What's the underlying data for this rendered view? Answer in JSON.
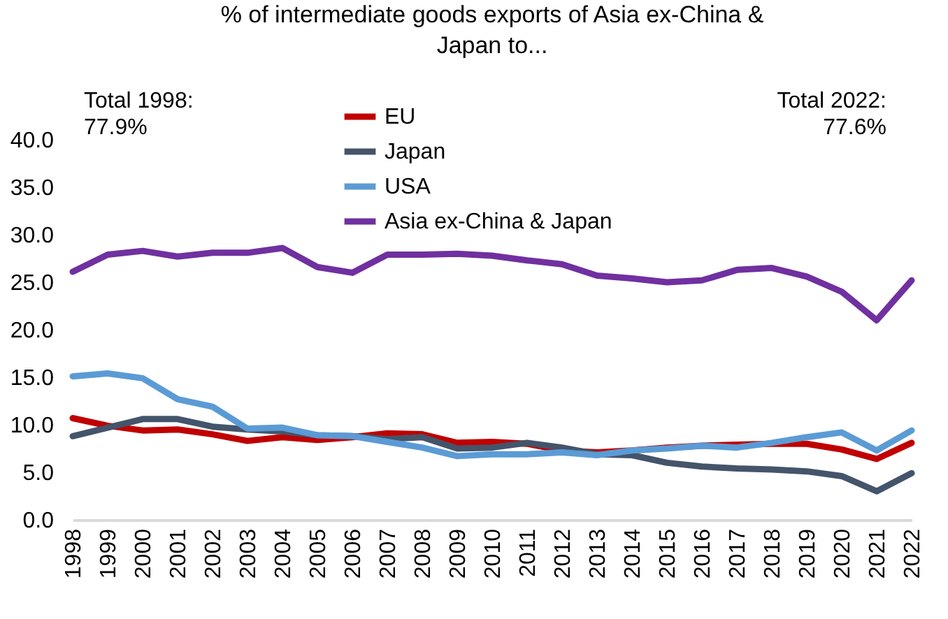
{
  "chart_data": {
    "type": "line",
    "title": [
      "% of intermediate goods exports of Asia ex-China &",
      "Japan to..."
    ],
    "categories": [
      "1998",
      "1999",
      "2000",
      "2001",
      "2002",
      "2003",
      "2004",
      "2005",
      "2006",
      "2007",
      "2008",
      "2009",
      "2010",
      "2011",
      "2012",
      "2013",
      "2014",
      "2015",
      "2016",
      "2017",
      "2018",
      "2019",
      "2020",
      "2021",
      "2022"
    ],
    "series": [
      {
        "name": "EU",
        "color": "#c00000",
        "values": [
          10.7,
          9.9,
          9.4,
          9.5,
          9.0,
          8.3,
          8.7,
          8.4,
          8.7,
          9.1,
          9.0,
          8.1,
          8.2,
          8.0,
          7.3,
          7.1,
          7.3,
          7.6,
          7.8,
          7.9,
          8.0,
          8.0,
          7.4,
          6.4,
          8.1
        ]
      },
      {
        "name": "Japan",
        "color": "#44546a",
        "values": [
          8.8,
          9.7,
          10.6,
          10.6,
          9.8,
          9.5,
          9.3,
          8.9,
          8.8,
          8.5,
          8.7,
          7.5,
          7.6,
          8.1,
          7.6,
          6.9,
          6.8,
          6.0,
          5.6,
          5.4,
          5.3,
          5.1,
          4.6,
          3.0,
          4.9
        ]
      },
      {
        "name": "USA",
        "color": "#5b9bd5",
        "values": [
          15.1,
          15.4,
          14.9,
          12.7,
          11.9,
          9.6,
          9.7,
          8.9,
          8.8,
          8.2,
          7.6,
          6.7,
          6.9,
          6.9,
          7.1,
          6.8,
          7.3,
          7.5,
          7.8,
          7.6,
          8.1,
          8.7,
          9.2,
          7.3,
          9.4
        ]
      },
      {
        "name": "Asia ex-China & Japan",
        "color": "#7030a0",
        "values": [
          26.1,
          27.9,
          28.3,
          27.7,
          28.1,
          28.1,
          28.6,
          26.6,
          26.0,
          27.9,
          27.9,
          28.0,
          27.8,
          27.3,
          26.9,
          25.7,
          25.4,
          25.0,
          25.2,
          26.3,
          26.5,
          25.6,
          24.0,
          21.0,
          25.2
        ]
      }
    ],
    "ylim": [
      0,
      40
    ],
    "yticks": [
      {
        "value": 0,
        "label": "0.0"
      },
      {
        "value": 5,
        "label": "5.0"
      },
      {
        "value": 10,
        "label": "10.0"
      },
      {
        "value": 15,
        "label": "15.0"
      },
      {
        "value": 20,
        "label": "20.0"
      },
      {
        "value": 25,
        "label": "25.0"
      },
      {
        "value": 30,
        "label": "30.0"
      },
      {
        "value": 35,
        "label": "35.0"
      },
      {
        "value": 40,
        "label": "40.0"
      }
    ],
    "grid": false,
    "legend": "top",
    "marker": "none",
    "line_style": "solid",
    "annotations": [
      "Total 1998:\n77.9%",
      "Total 2022:\n77.6%"
    ]
  }
}
